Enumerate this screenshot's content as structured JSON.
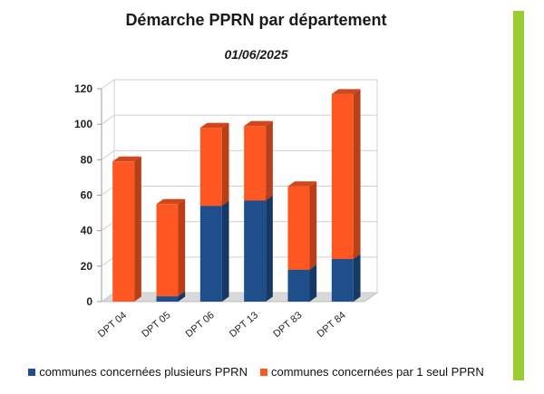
{
  "chart_data": {
    "type": "bar",
    "stacked": true,
    "title": "Démarche PPRN par département",
    "subtitle": "01/06/2025",
    "categories": [
      "DPT 04",
      "DPT 05",
      "DPT 06",
      "DPT 13",
      "DPT 83",
      "DPT 84"
    ],
    "series": [
      {
        "name": "communes concernées plusieurs PPRN",
        "color": "#1f4e8c",
        "values": [
          0,
          3,
          54,
          57,
          18,
          24
        ]
      },
      {
        "name": "communes concernées par 1 seul PPRN",
        "color": "#ff5722",
        "values": [
          79,
          52,
          44,
          42,
          47,
          93
        ]
      }
    ],
    "ylim": [
      0,
      120
    ],
    "yticks": [
      0,
      20,
      40,
      60,
      80,
      100,
      120
    ],
    "grid": true,
    "legend_position": "bottom"
  },
  "decor": {
    "side_bar_color": "#9acd32"
  }
}
